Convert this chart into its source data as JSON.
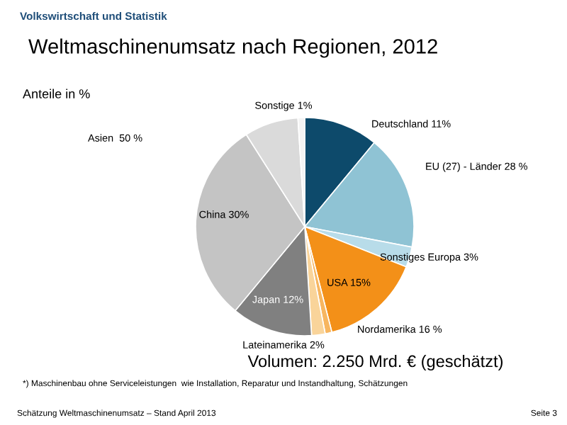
{
  "chart_data": {
    "type": "pie",
    "title": "Weltmaschinenumsatz nach Regionen, 2012",
    "subtitle": "Anteile in %",
    "categories": [
      "Deutschland",
      null,
      "Sonstiges Europa",
      "USA",
      null,
      "Lateinamerika",
      "Japan",
      "China",
      null,
      "Sonstige"
    ],
    "values": [
      11,
      17,
      3,
      15,
      1,
      2,
      12,
      30,
      8,
      1
    ],
    "value_labels": [
      "11%",
      null,
      "3%",
      "15%",
      null,
      "2%",
      "12%",
      "30%",
      null,
      "1%"
    ],
    "colors": [
      "#0d4a6b",
      "#8fc3d4",
      "#b8dce9",
      "#f39018",
      "#f7b660",
      "#f9d49a",
      "#808080",
      "#c4c4c4",
      "#dadada",
      "#f4f4f4"
    ],
    "annotations": [
      "Volkswirtschaft und Statistik",
      "EU (27) - Länder 28 %",
      "Nordamerika 16 %",
      "Asien  50 %",
      "Volumen: 2.250 Mrd. € (geschätzt)",
      "*) Maschinenbau ohne Serviceleistungen  wie Installation, Reparatur und Instandhaltung, Schätzungen",
      "Schätzung Weltmaschinenumsatz – Stand April 2013",
      "Seite 3"
    ]
  }
}
